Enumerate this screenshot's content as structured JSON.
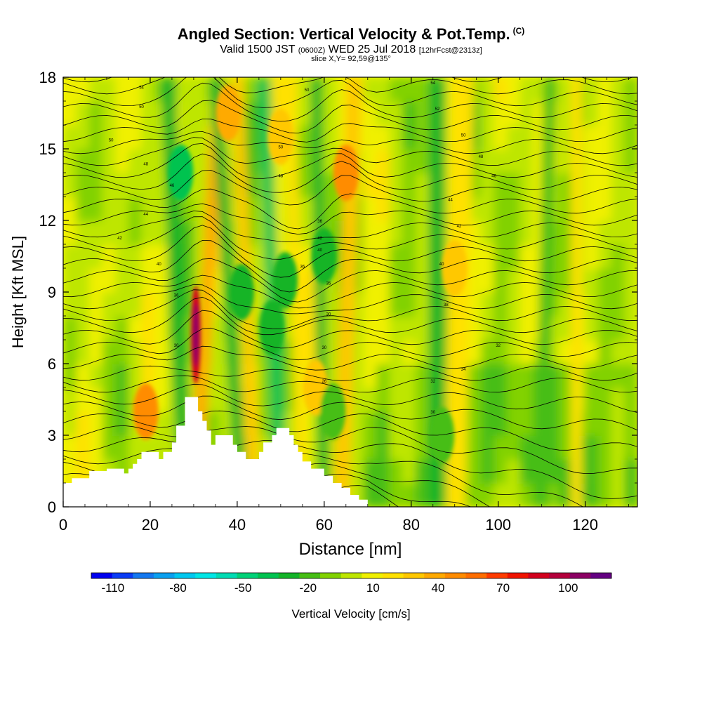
{
  "header": {
    "title": "Angled Section: Vertical Velocity & Pot.Temp.",
    "title_badge": "(C)",
    "valid_prefix": "Valid 1500 JST",
    "valid_utc": "(0600Z)",
    "valid_date": "WED 25 Jul 2018",
    "forecast": "[12hrFcst@2313z]",
    "slice": "slice X,Y= 92,59@135°"
  },
  "chart_data": {
    "type": "heatmap",
    "xlabel": "Distance [nm]",
    "ylabel": "Height [Kft MSL]",
    "xlim": [
      0,
      132
    ],
    "ylim": [
      0,
      18
    ],
    "xticks": [
      0,
      20,
      40,
      60,
      80,
      100,
      120
    ],
    "yticks": [
      0,
      3,
      6,
      9,
      12,
      15,
      18
    ],
    "colorbar": {
      "label": "Vertical Velocity [cm/s]",
      "tick_labels": [
        -110,
        -80,
        -50,
        -20,
        10,
        40,
        70,
        100
      ],
      "bins": [
        -120,
        -110,
        -100,
        -90,
        -80,
        -70,
        -60,
        -50,
        -40,
        -30,
        -20,
        -10,
        0,
        10,
        20,
        30,
        40,
        50,
        60,
        70,
        80,
        90,
        100,
        110,
        120
      ],
      "colors": [
        "#0000f0",
        "#0a3cf5",
        "#1478f0",
        "#0aa0f0",
        "#00c8f0",
        "#00e6e6",
        "#00dcb4",
        "#00d278",
        "#00c350",
        "#14b428",
        "#46be14",
        "#82d200",
        "#bee600",
        "#f0f000",
        "#ffe100",
        "#ffc800",
        "#ffaa00",
        "#ff8c00",
        "#ff6e00",
        "#ff3c00",
        "#f01400",
        "#d2001e",
        "#b4003c",
        "#8c0064",
        "#640082"
      ]
    },
    "terrain_profile_kft": [
      [
        0,
        1.0
      ],
      [
        2,
        1.0
      ],
      [
        2,
        1.2
      ],
      [
        6,
        1.2
      ],
      [
        6,
        1.5
      ],
      [
        10,
        1.5
      ],
      [
        10,
        1.6
      ],
      [
        14,
        1.6
      ],
      [
        14,
        1.4
      ],
      [
        15,
        1.4
      ],
      [
        15,
        1.6
      ],
      [
        16,
        1.6
      ],
      [
        16,
        1.8
      ],
      [
        17,
        1.8
      ],
      [
        17,
        2.0
      ],
      [
        18,
        2.0
      ],
      [
        18,
        2.3
      ],
      [
        22,
        2.3
      ],
      [
        22,
        2.0
      ],
      [
        23,
        2.0
      ],
      [
        23,
        2.3
      ],
      [
        25,
        2.3
      ],
      [
        25,
        2.7
      ],
      [
        26,
        2.7
      ],
      [
        26,
        3.4
      ],
      [
        28,
        3.4
      ],
      [
        28,
        4.6
      ],
      [
        31,
        4.6
      ],
      [
        31,
        4.0
      ],
      [
        32,
        4.0
      ],
      [
        32,
        3.6
      ],
      [
        33,
        3.6
      ],
      [
        33,
        3.2
      ],
      [
        34,
        3.2
      ],
      [
        34,
        2.6
      ],
      [
        35,
        2.6
      ],
      [
        35,
        3.0
      ],
      [
        39,
        3.0
      ],
      [
        39,
        2.6
      ],
      [
        40,
        2.6
      ],
      [
        40,
        2.3
      ],
      [
        42,
        2.3
      ],
      [
        42,
        2.0
      ],
      [
        45,
        2.0
      ],
      [
        45,
        2.3
      ],
      [
        46,
        2.3
      ],
      [
        46,
        2.7
      ],
      [
        48,
        2.7
      ],
      [
        48,
        3.0
      ],
      [
        49,
        3.0
      ],
      [
        49,
        3.3
      ],
      [
        52,
        3.3
      ],
      [
        52,
        3.0
      ],
      [
        53,
        3.0
      ],
      [
        53,
        2.6
      ],
      [
        54,
        2.6
      ],
      [
        54,
        2.3
      ],
      [
        55,
        2.3
      ],
      [
        55,
        1.9
      ],
      [
        57,
        1.9
      ],
      [
        57,
        1.6
      ],
      [
        60,
        1.6
      ],
      [
        60,
        1.3
      ],
      [
        62,
        1.3
      ],
      [
        62,
        1.0
      ],
      [
        64,
        1.0
      ],
      [
        64,
        0.8
      ],
      [
        66,
        0.8
      ],
      [
        66,
        0.5
      ],
      [
        68,
        0.5
      ],
      [
        68,
        0.3
      ],
      [
        70,
        0.3
      ],
      [
        70,
        0
      ],
      [
        132,
        0
      ]
    ],
    "updraft_cores": [
      {
        "x": 30.5,
        "y": 7.2,
        "value": 95
      },
      {
        "x": 19,
        "y": 4.0,
        "value": 55
      },
      {
        "x": 38,
        "y": 16.5,
        "value": 40
      },
      {
        "x": 50,
        "y": 15.5,
        "value": 35
      },
      {
        "x": 65,
        "y": 14.0,
        "value": 50
      },
      {
        "x": 90,
        "y": 10.0,
        "value": 35
      },
      {
        "x": 58,
        "y": 5.0,
        "value": 30
      }
    ],
    "downdraft_cores": [
      {
        "x": 27,
        "y": 14.0,
        "value": -35
      },
      {
        "x": 41,
        "y": 9.0,
        "value": -30
      },
      {
        "x": 48,
        "y": 7.5,
        "value": -30
      },
      {
        "x": 51,
        "y": 9.5,
        "value": -25
      },
      {
        "x": 60,
        "y": 10.5,
        "value": -25
      },
      {
        "x": 87,
        "y": 3.0,
        "value": -20
      },
      {
        "x": 62,
        "y": 4.0,
        "value": -20
      }
    ],
    "theta_contour_labels": [
      {
        "x": 18,
        "y": 17.6,
        "text": "54"
      },
      {
        "x": 18,
        "y": 16.8,
        "text": "50"
      },
      {
        "x": 11,
        "y": 15.4,
        "text": "50"
      },
      {
        "x": 19,
        "y": 14.4,
        "text": "48"
      },
      {
        "x": 25,
        "y": 13.5,
        "text": "46"
      },
      {
        "x": 19,
        "y": 12.3,
        "text": "44"
      },
      {
        "x": 13,
        "y": 11.3,
        "text": "42"
      },
      {
        "x": 22,
        "y": 10.2,
        "text": "40"
      },
      {
        "x": 26,
        "y": 8.9,
        "text": "36"
      },
      {
        "x": 26,
        "y": 6.8,
        "text": "30"
      },
      {
        "x": 56,
        "y": 17.5,
        "text": "50"
      },
      {
        "x": 50,
        "y": 15.1,
        "text": "50"
      },
      {
        "x": 50,
        "y": 13.9,
        "text": "48"
      },
      {
        "x": 59,
        "y": 12.0,
        "text": "36"
      },
      {
        "x": 59,
        "y": 11.3,
        "text": "42"
      },
      {
        "x": 59,
        "y": 10.8,
        "text": "40"
      },
      {
        "x": 55,
        "y": 10.1,
        "text": "36"
      },
      {
        "x": 61,
        "y": 9.4,
        "text": "35"
      },
      {
        "x": 61,
        "y": 8.1,
        "text": "30"
      },
      {
        "x": 60,
        "y": 6.7,
        "text": "30"
      },
      {
        "x": 60,
        "y": 5.3,
        "text": "26"
      },
      {
        "x": 85,
        "y": 17.8,
        "text": "54"
      },
      {
        "x": 86,
        "y": 16.7,
        "text": "52"
      },
      {
        "x": 92,
        "y": 15.6,
        "text": "50"
      },
      {
        "x": 96,
        "y": 14.7,
        "text": "48"
      },
      {
        "x": 99,
        "y": 13.9,
        "text": "46"
      },
      {
        "x": 89,
        "y": 12.9,
        "text": "44"
      },
      {
        "x": 91,
        "y": 11.8,
        "text": "42"
      },
      {
        "x": 87,
        "y": 10.2,
        "text": "40"
      },
      {
        "x": 88,
        "y": 8.5,
        "text": "38"
      },
      {
        "x": 100,
        "y": 6.8,
        "text": "32"
      },
      {
        "x": 92,
        "y": 5.8,
        "text": "34"
      },
      {
        "x": 85,
        "y": 5.3,
        "text": "32"
      },
      {
        "x": 85,
        "y": 4.0,
        "text": "30"
      }
    ]
  }
}
